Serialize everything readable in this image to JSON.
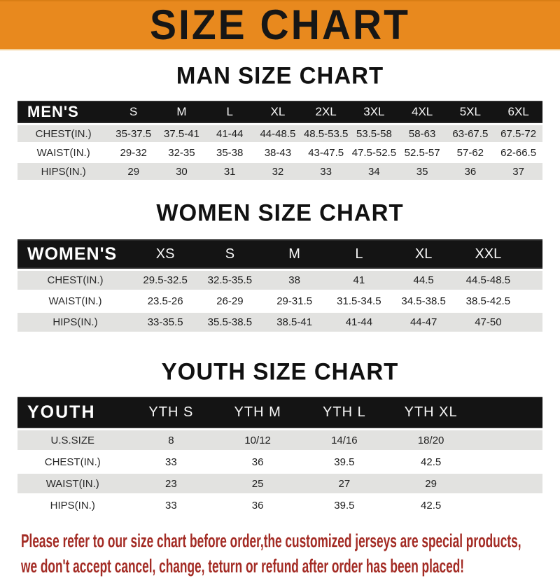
{
  "header": {
    "title": "SIZE CHART"
  },
  "sections": [
    {
      "title": "MAN SIZE CHART",
      "label": "MEN'S",
      "columns": [
        "S",
        "M",
        "L",
        "XL",
        "2XL",
        "3XL",
        "4XL",
        "5XL",
        "6XL"
      ],
      "rows": [
        {
          "label": "CHEST(IN.)",
          "values": [
            "35-37.5",
            "37.5-41",
            "41-44",
            "44-48.5",
            "48.5-53.5",
            "53.5-58",
            "58-63",
            "63-67.5",
            "67.5-72"
          ]
        },
        {
          "label": "WAIST(IN.)",
          "values": [
            "29-32",
            "32-35",
            "35-38",
            "38-43",
            "43-47.5",
            "47.5-52.5",
            "52.5-57",
            "57-62",
            "62-66.5"
          ]
        },
        {
          "label": "HIPS(IN.)",
          "values": [
            "29",
            "30",
            "31",
            "32",
            "33",
            "34",
            "35",
            "36",
            "37"
          ]
        }
      ]
    },
    {
      "title": "WOMEN SIZE CHART",
      "label": "WOMEN'S",
      "columns": [
        "XS",
        "S",
        "M",
        "L",
        "XL",
        "XXL"
      ],
      "rows": [
        {
          "label": "CHEST(IN.)",
          "values": [
            "29.5-32.5",
            "32.5-35.5",
            "38",
            "41",
            "44.5",
            "44.5-48.5"
          ]
        },
        {
          "label": "WAIST(IN.)",
          "values": [
            "23.5-26",
            "26-29",
            "29-31.5",
            "31.5-34.5",
            "34.5-38.5",
            "38.5-42.5"
          ]
        },
        {
          "label": "HIPS(IN.)",
          "values": [
            "33-35.5",
            "35.5-38.5",
            "38.5-41",
            "41-44",
            "44-47",
            "47-50"
          ]
        }
      ]
    },
    {
      "title": "YOUTH SIZE CHART",
      "label": "YOUTH",
      "columns": [
        "YTH S",
        "YTH M",
        "YTH L",
        "YTH XL"
      ],
      "rows": [
        {
          "label": "U.S.SIZE",
          "values": [
            "8",
            "10/12",
            "14/16",
            "18/20"
          ]
        },
        {
          "label": "CHEST(IN.)",
          "values": [
            "33",
            "36",
            "39.5",
            "42.5"
          ]
        },
        {
          "label": "WAIST(IN.)",
          "values": [
            "23",
            "25",
            "27",
            "29"
          ]
        },
        {
          "label": "HIPS(IN.)",
          "values": [
            "33",
            "36",
            "39.5",
            "42.5"
          ]
        }
      ]
    }
  ],
  "footer": {
    "line1": "Please refer to our size chart before order,the customized jerseys are special products,",
    "line2": "we don't accept cancel, change, teturn or refund after order has been placed!"
  },
  "colors": {
    "accent_orange": "#E8891E",
    "header_bar_black": "#141414",
    "stripe_gray": "#E2E2E0",
    "note_red": "#A32B24"
  }
}
